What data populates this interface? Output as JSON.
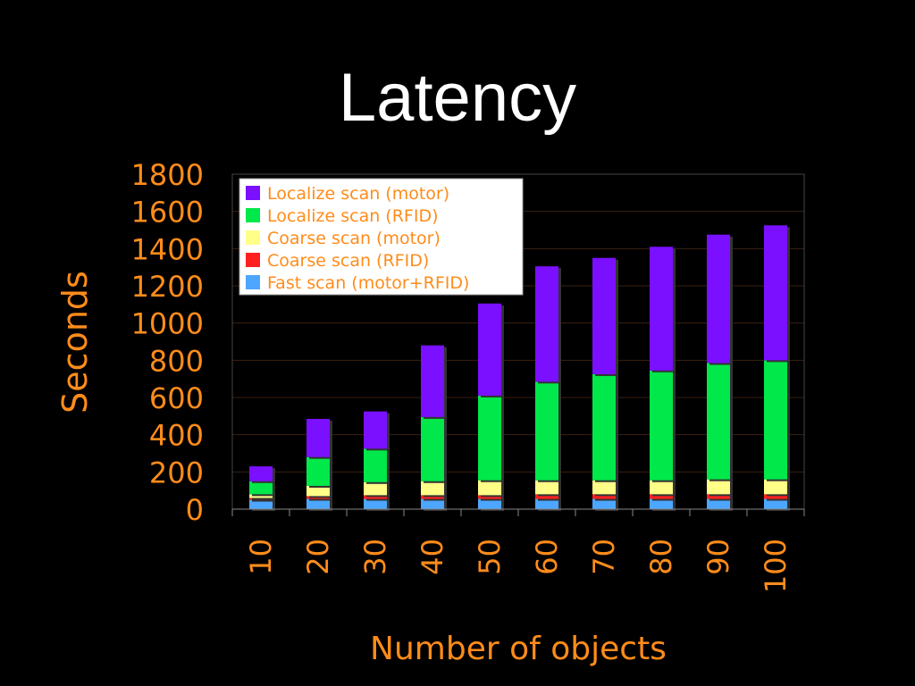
{
  "slide": {
    "title": "Latency"
  },
  "chart_data": {
    "type": "bar",
    "stacked": true,
    "categories": [
      "10",
      "20",
      "30",
      "40",
      "50",
      "60",
      "70",
      "80",
      "90",
      "100"
    ],
    "series": [
      {
        "name": "Fast scan (motor+RFID)",
        "color": "#4da6ff",
        "values": [
          50,
          55,
          55,
          55,
          55,
          55,
          55,
          55,
          55,
          55
        ]
      },
      {
        "name": "Coarse scan (RFID)",
        "color": "#ff2020",
        "values": [
          10,
          15,
          20,
          20,
          20,
          25,
          25,
          25,
          25,
          25
        ]
      },
      {
        "name": "Coarse scan (motor)",
        "color": "#ffff88",
        "values": [
          20,
          55,
          70,
          75,
          80,
          75,
          75,
          75,
          80,
          80
        ]
      },
      {
        "name": "Localize scan (RFID)",
        "color": "#00e84a",
        "values": [
          70,
          155,
          180,
          345,
          455,
          530,
          570,
          590,
          625,
          640
        ]
      },
      {
        "name": "Localize scan (motor)",
        "color": "#7a10ff",
        "values": [
          80,
          205,
          200,
          385,
          495,
          620,
          625,
          665,
          690,
          725
        ]
      }
    ],
    "title": "",
    "xlabel": "Number of objects",
    "ylabel": "Seconds",
    "ylim": [
      0,
      1800
    ],
    "yticks": [
      "0",
      "200",
      "400",
      "600",
      "800",
      "1000",
      "1200",
      "1400",
      "1600",
      "1800"
    ],
    "grid": true,
    "legend": "top-left",
    "text_color": "#ff8c1a"
  }
}
